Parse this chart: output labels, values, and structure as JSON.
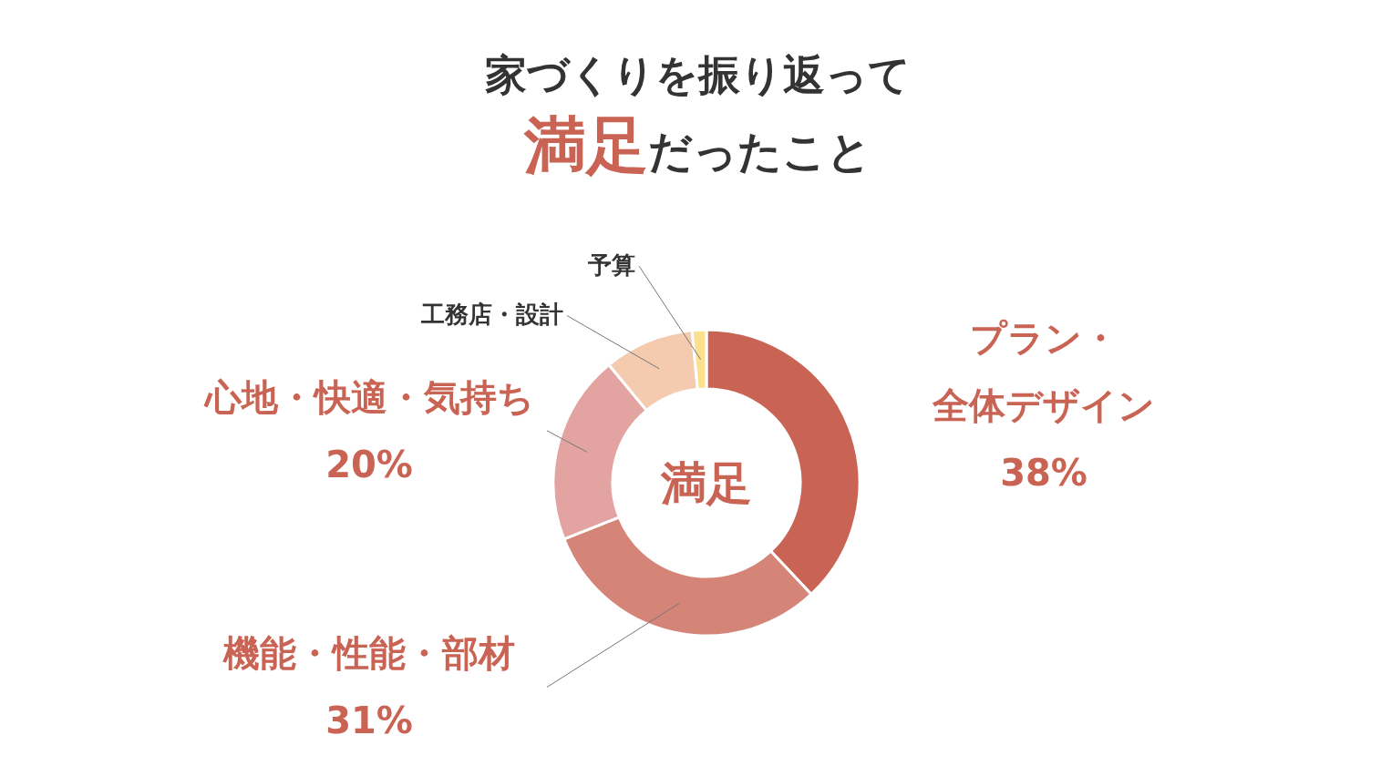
{
  "chart_data": {
    "type": "donut",
    "title": "家づくりを振り返って",
    "subtitle": "満足だったこと",
    "categories": [
      "プラン・全体デザイン",
      "機能・性能・部材",
      "心地・快適・気持ち",
      "工務店・設計",
      "予算"
    ],
    "values": [
      38,
      31,
      20,
      9.5,
      1.5
    ],
    "colors": [
      "#c96353",
      "#d58478",
      "#e2a3a1",
      "#f5cbb0",
      "#fbe08f"
    ],
    "value_labels": [
      "38%",
      "31%",
      "20%",
      null,
      null
    ],
    "annotations": [
      "満足"
    ]
  }
}
